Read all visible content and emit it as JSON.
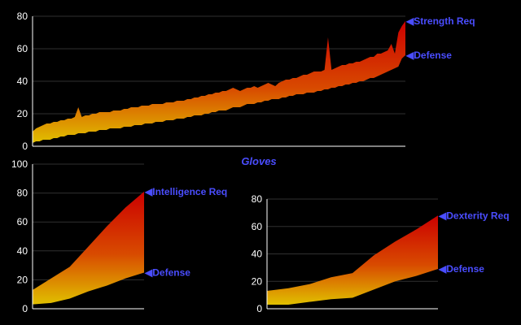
{
  "colors": {
    "background": "#000000",
    "axis": "#ffffff",
    "grid": "#303030",
    "label": "#4a4dff",
    "fill_top": "#cc0000",
    "fill_mid": "#d84a00",
    "fill_bottom": "#e0c000"
  },
  "chart_data": [
    {
      "type": "area",
      "series": [
        {
          "name": "Strength Req",
          "label_text": "◀Strength Req",
          "values": [
            9,
            11,
            12,
            13,
            14,
            14,
            15,
            15,
            16,
            16,
            17,
            17,
            18,
            24,
            18,
            19,
            19,
            20,
            20,
            21,
            21,
            21,
            21,
            22,
            22,
            22,
            23,
            23,
            24,
            24,
            24,
            25,
            25,
            25,
            26,
            26,
            26,
            26,
            27,
            27,
            27,
            28,
            28,
            28,
            29,
            29,
            30,
            30,
            31,
            31,
            32,
            32,
            33,
            33,
            34,
            34,
            35,
            36,
            35,
            34,
            35,
            36,
            36,
            37,
            36,
            37,
            38,
            39,
            38,
            37,
            39,
            40,
            41,
            41,
            42,
            42,
            43,
            44,
            44,
            45,
            46,
            46,
            46,
            47,
            67,
            47,
            48,
            49,
            50,
            50,
            51,
            51,
            52,
            52,
            53,
            54,
            55,
            55,
            57,
            57,
            58,
            59,
            63,
            57,
            70,
            74,
            77
          ]
        },
        {
          "name": "Defense",
          "label_text": "◀Defense",
          "values": [
            2,
            3,
            3,
            4,
            4,
            4,
            5,
            5,
            6,
            6,
            7,
            7,
            7,
            8,
            8,
            8,
            9,
            9,
            9,
            10,
            10,
            10,
            11,
            11,
            11,
            11,
            12,
            12,
            12,
            13,
            13,
            13,
            14,
            14,
            14,
            15,
            15,
            15,
            16,
            16,
            16,
            17,
            17,
            17,
            18,
            18,
            19,
            19,
            19,
            20,
            20,
            21,
            21,
            22,
            22,
            22,
            23,
            24,
            24,
            24,
            25,
            26,
            26,
            26,
            27,
            27,
            28,
            28,
            29,
            29,
            29,
            30,
            30,
            31,
            31,
            32,
            32,
            32,
            33,
            33,
            33,
            34,
            34,
            35,
            35,
            36,
            36,
            37,
            37,
            38,
            38,
            39,
            39,
            40,
            40,
            41,
            42,
            42,
            43,
            44,
            45,
            46,
            47,
            48,
            49,
            54,
            56
          ]
        }
      ],
      "ylim": [
        0,
        80
      ],
      "yticks": [
        0,
        20,
        40,
        60,
        80
      ],
      "grid": true
    },
    {
      "type": "area",
      "series": [
        {
          "name": "Intelligence Req",
          "label_text": "◀Intelligence Req",
          "values": [
            13,
            21,
            29,
            43,
            57,
            70,
            81
          ]
        },
        {
          "name": "Defense",
          "label_text": "◀Defense",
          "values": [
            3,
            4,
            7,
            12,
            16,
            21,
            25
          ]
        }
      ],
      "ylim": [
        0,
        100
      ],
      "yticks": [
        0,
        20,
        40,
        60,
        80,
        100
      ],
      "grid": true
    },
    {
      "type": "area",
      "series": [
        {
          "name": "Dexterity Req",
          "label_text": "◀Dexterity Req",
          "values": [
            13,
            15,
            18,
            23,
            26,
            39,
            49,
            58,
            68
          ]
        },
        {
          "name": "Defense",
          "label_text": "◀Defense",
          "values": [
            3,
            3,
            5,
            7,
            8,
            14,
            20,
            24,
            29
          ]
        }
      ],
      "ylim": [
        0,
        80
      ],
      "yticks": [
        0,
        20,
        40,
        60,
        80
      ],
      "grid": true
    }
  ],
  "title": "Gloves"
}
